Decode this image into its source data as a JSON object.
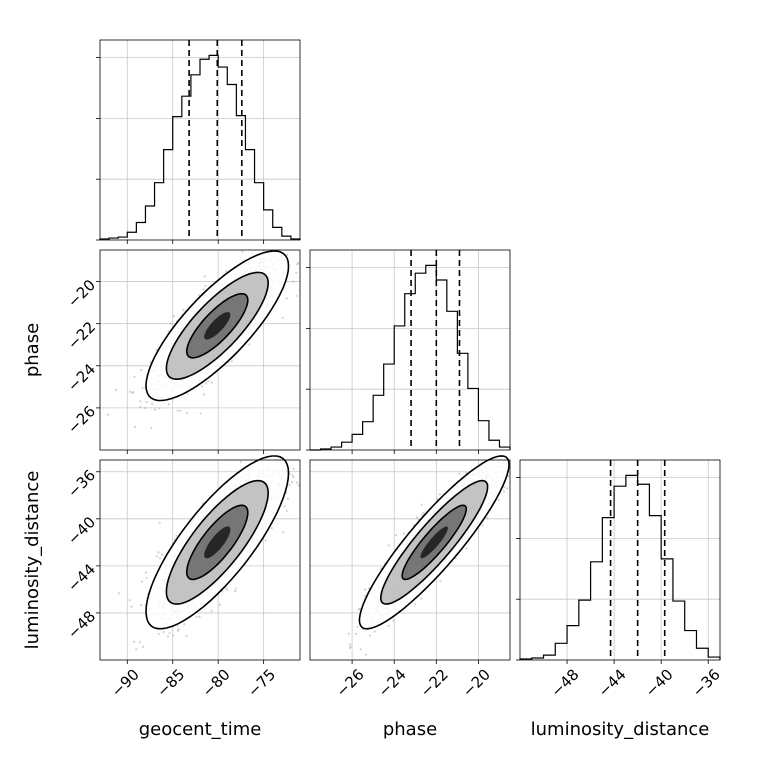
{
  "chart_data": {
    "type": "corner",
    "grid": true,
    "parameters": [
      {
        "name": "geocent_time",
        "range": [
          -93,
          -71
        ],
        "ticks": [
          -90,
          -85,
          -80,
          -75
        ],
        "tick_labels": [
          "−90",
          "−85",
          "−80",
          "−75"
        ],
        "quantiles": [
          -83.2,
          -80.1,
          -77.4
        ],
        "hist_edges": [
          -93,
          -92,
          -91,
          -90,
          -89,
          -88,
          -87,
          -86,
          -85,
          -84,
          -83,
          -82,
          -81,
          -80,
          -79,
          -78,
          -77,
          -76,
          -75,
          -74,
          -73,
          -72,
          -71
        ],
        "hist_counts": [
          1,
          2,
          3,
          8,
          18,
          35,
          59,
          93,
          127,
          148,
          170,
          186,
          190,
          178,
          160,
          128,
          93,
          59,
          31,
          13,
          4,
          1
        ]
      },
      {
        "name": "phase",
        "range": [
          -28,
          -18.5
        ],
        "ticks": [
          -26,
          -24,
          -22,
          -20
        ],
        "tick_labels": [
          "−26",
          "−24",
          "−22",
          "−20"
        ],
        "quantiles": [
          -23.2,
          -22.0,
          -20.9
        ],
        "hist_edges": [
          -28,
          -27.5,
          -27,
          -26.5,
          -26,
          -25.5,
          -25,
          -24.5,
          -24,
          -23.5,
          -23,
          -22.5,
          -22,
          -21.5,
          -21,
          -20.5,
          -20,
          -19.5,
          -19,
          -18.5
        ],
        "hist_counts": [
          0,
          1,
          3,
          8,
          16,
          29,
          56,
          88,
          127,
          160,
          181,
          189,
          174,
          142,
          99,
          63,
          30,
          10,
          3
        ]
      },
      {
        "name": "luminosity_distance",
        "range": [
          -52,
          -35
        ],
        "ticks": [
          -48,
          -44,
          -40,
          -36
        ],
        "tick_labels": [
          "−48",
          "−44",
          "−40",
          "−36"
        ],
        "quantiles": [
          -44.3,
          -42.0,
          -39.7
        ],
        "hist_edges": [
          -52,
          -51,
          -50,
          -49,
          -48,
          -47,
          -46,
          -45,
          -44,
          -43,
          -42,
          -41,
          -40,
          -39,
          -38,
          -37,
          -36,
          -35
        ],
        "hist_counts": [
          1,
          2,
          5,
          17,
          35,
          61,
          100,
          145,
          177,
          188,
          179,
          147,
          103,
          60,
          30,
          12,
          3
        ]
      }
    ],
    "pairs": [
      {
        "x_param": "geocent_time",
        "y_param": "phase",
        "center": [
          -80.1,
          -22.1
        ],
        "std": [
          3.2,
          1.45
        ],
        "correlation": 0.8
      },
      {
        "x_param": "geocent_time",
        "y_param": "luminosity_distance",
        "center": [
          -80.1,
          -42.0
        ],
        "std": [
          3.2,
          3.0
        ],
        "correlation": 0.8
      },
      {
        "x_param": "phase",
        "y_param": "luminosity_distance",
        "center": [
          -22.1,
          -42.0
        ],
        "std": [
          1.45,
          3.0
        ],
        "correlation": 0.9
      }
    ]
  }
}
